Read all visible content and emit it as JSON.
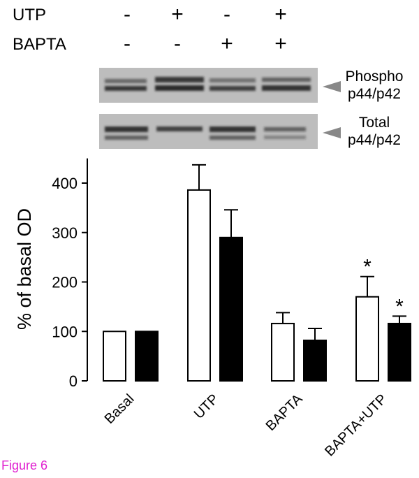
{
  "treatments": [
    {
      "name": "UTP",
      "signs": [
        "-",
        "+",
        "-",
        "+"
      ]
    },
    {
      "name": "BAPTA",
      "signs": [
        "-",
        "-",
        "+",
        "+"
      ]
    }
  ],
  "blots": [
    {
      "label": [
        "Phospho",
        "p44/p42"
      ]
    },
    {
      "label": [
        "Total",
        "p44/p42"
      ]
    }
  ],
  "chart_data": {
    "type": "bar",
    "ylabel": "% of basal OD",
    "categories": [
      "Basal",
      "UTP",
      "BAPTA",
      "BAPTA+UTP"
    ],
    "series": [
      {
        "color": "#ffffff",
        "values": [
          100,
          386,
          116,
          170
        ],
        "errors": [
          0,
          51,
          22,
          41
        ],
        "significance": [
          null,
          null,
          null,
          "*"
        ]
      },
      {
        "color": "#000000",
        "values": [
          100,
          290,
          82,
          116
        ],
        "errors": [
          0,
          56,
          24,
          15
        ],
        "significance": [
          null,
          null,
          null,
          "*"
        ]
      }
    ],
    "ylim": [
      0,
      450
    ],
    "yticks": [
      0,
      100,
      200,
      300,
      400
    ],
    "grid": false
  },
  "figure_label": "Figure 6"
}
